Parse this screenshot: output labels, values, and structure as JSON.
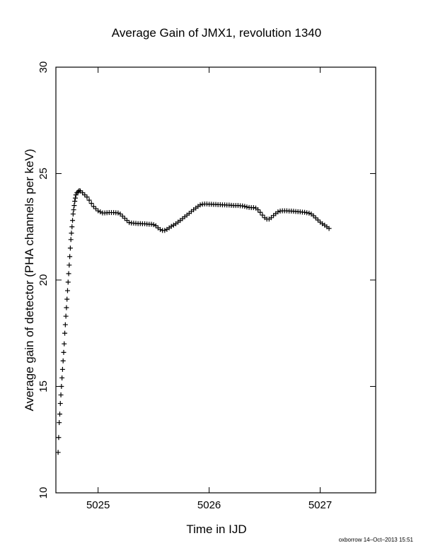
{
  "chart_data": {
    "type": "scatter",
    "title": "Average Gain of JMX1, revolution 1340",
    "xlabel": "Time in IJD",
    "ylabel": "Average gain of detector (PHA channels per keV)",
    "xlim": [
      5024.62,
      5027.5
    ],
    "ylim": [
      10,
      30
    ],
    "xticks": [
      5025,
      5026,
      5027
    ],
    "yticks": [
      10,
      15,
      20,
      25,
      30
    ],
    "xtick_labels": [
      "5025",
      "5026",
      "5027"
    ],
    "ytick_labels": [
      "10",
      "15",
      "20",
      "25",
      "30"
    ],
    "marker": "plus",
    "grid": false,
    "legend": "none",
    "points": [
      [
        5024.64,
        11.9
      ],
      [
        5024.645,
        12.6
      ],
      [
        5024.65,
        13.3
      ],
      [
        5024.655,
        13.7
      ],
      [
        5024.66,
        14.2
      ],
      [
        5024.665,
        14.6
      ],
      [
        5024.67,
        15.0
      ],
      [
        5024.675,
        15.4
      ],
      [
        5024.68,
        15.8
      ],
      [
        5024.685,
        16.2
      ],
      [
        5024.69,
        16.6
      ],
      [
        5024.695,
        17.0
      ],
      [
        5024.7,
        17.5
      ],
      [
        5024.705,
        17.9
      ],
      [
        5024.71,
        18.3
      ],
      [
        5024.715,
        18.7
      ],
      [
        5024.72,
        19.1
      ],
      [
        5024.725,
        19.5
      ],
      [
        5024.73,
        19.9
      ],
      [
        5024.735,
        20.3
      ],
      [
        5024.74,
        20.7
      ],
      [
        5024.745,
        21.1
      ],
      [
        5024.75,
        21.5
      ],
      [
        5024.755,
        21.9
      ],
      [
        5024.76,
        22.2
      ],
      [
        5024.765,
        22.5
      ],
      [
        5024.77,
        22.8
      ],
      [
        5024.775,
        23.1
      ],
      [
        5024.78,
        23.3
      ],
      [
        5024.785,
        23.5
      ],
      [
        5024.79,
        23.7
      ],
      [
        5024.795,
        23.85
      ],
      [
        5024.8,
        24.0
      ],
      [
        5024.81,
        24.1
      ],
      [
        5024.82,
        24.15
      ],
      [
        5024.83,
        24.2
      ],
      [
        5024.84,
        24.18
      ],
      [
        5024.86,
        24.1
      ],
      [
        5024.88,
        24.0
      ],
      [
        5024.9,
        23.9
      ],
      [
        5024.92,
        23.75
      ],
      [
        5024.94,
        23.6
      ],
      [
        5024.96,
        23.45
      ],
      [
        5024.98,
        23.35
      ],
      [
        5025.0,
        23.25
      ],
      [
        5025.02,
        23.2
      ],
      [
        5025.04,
        23.15
      ],
      [
        5025.06,
        23.15
      ],
      [
        5025.08,
        23.16
      ],
      [
        5025.1,
        23.17
      ],
      [
        5025.12,
        23.17
      ],
      [
        5025.14,
        23.17
      ],
      [
        5025.16,
        23.16
      ],
      [
        5025.18,
        23.15
      ],
      [
        5025.2,
        23.1
      ],
      [
        5025.22,
        23.0
      ],
      [
        5025.24,
        22.9
      ],
      [
        5025.26,
        22.8
      ],
      [
        5025.28,
        22.7
      ],
      [
        5025.3,
        22.68
      ],
      [
        5025.32,
        22.67
      ],
      [
        5025.34,
        22.66
      ],
      [
        5025.36,
        22.65
      ],
      [
        5025.38,
        22.65
      ],
      [
        5025.4,
        22.64
      ],
      [
        5025.42,
        22.64
      ],
      [
        5025.44,
        22.63
      ],
      [
        5025.46,
        22.62
      ],
      [
        5025.48,
        22.62
      ],
      [
        5025.5,
        22.6
      ],
      [
        5025.52,
        22.55
      ],
      [
        5025.54,
        22.45
      ],
      [
        5025.56,
        22.37
      ],
      [
        5025.58,
        22.33
      ],
      [
        5025.6,
        22.33
      ],
      [
        5025.62,
        22.38
      ],
      [
        5025.64,
        22.45
      ],
      [
        5025.66,
        22.52
      ],
      [
        5025.68,
        22.58
      ],
      [
        5025.7,
        22.64
      ],
      [
        5025.72,
        22.72
      ],
      [
        5025.74,
        22.8
      ],
      [
        5025.76,
        22.88
      ],
      [
        5025.78,
        22.97
      ],
      [
        5025.8,
        23.05
      ],
      [
        5025.82,
        23.13
      ],
      [
        5025.84,
        23.22
      ],
      [
        5025.86,
        23.3
      ],
      [
        5025.88,
        23.38
      ],
      [
        5025.9,
        23.46
      ],
      [
        5025.92,
        23.53
      ],
      [
        5025.94,
        23.56
      ],
      [
        5025.96,
        23.57
      ],
      [
        5025.98,
        23.57
      ],
      [
        5026.0,
        23.56
      ],
      [
        5026.02,
        23.56
      ],
      [
        5026.04,
        23.55
      ],
      [
        5026.06,
        23.55
      ],
      [
        5026.08,
        23.54
      ],
      [
        5026.1,
        23.54
      ],
      [
        5026.12,
        23.53
      ],
      [
        5026.14,
        23.53
      ],
      [
        5026.16,
        23.52
      ],
      [
        5026.18,
        23.52
      ],
      [
        5026.2,
        23.51
      ],
      [
        5026.22,
        23.5
      ],
      [
        5026.24,
        23.5
      ],
      [
        5026.26,
        23.5
      ],
      [
        5026.28,
        23.49
      ],
      [
        5026.3,
        23.48
      ],
      [
        5026.32,
        23.46
      ],
      [
        5026.34,
        23.43
      ],
      [
        5026.36,
        23.41
      ],
      [
        5026.38,
        23.4
      ],
      [
        5026.4,
        23.4
      ],
      [
        5026.42,
        23.38
      ],
      [
        5026.44,
        23.3
      ],
      [
        5026.46,
        23.18
      ],
      [
        5026.48,
        23.05
      ],
      [
        5026.5,
        22.93
      ],
      [
        5026.52,
        22.86
      ],
      [
        5026.54,
        22.86
      ],
      [
        5026.56,
        22.93
      ],
      [
        5026.58,
        23.03
      ],
      [
        5026.6,
        23.12
      ],
      [
        5026.62,
        23.2
      ],
      [
        5026.64,
        23.24
      ],
      [
        5026.66,
        23.25
      ],
      [
        5026.68,
        23.25
      ],
      [
        5026.7,
        23.25
      ],
      [
        5026.72,
        23.24
      ],
      [
        5026.74,
        23.24
      ],
      [
        5026.76,
        23.23
      ],
      [
        5026.78,
        23.22
      ],
      [
        5026.8,
        23.21
      ],
      [
        5026.82,
        23.2
      ],
      [
        5026.84,
        23.19
      ],
      [
        5026.86,
        23.18
      ],
      [
        5026.88,
        23.16
      ],
      [
        5026.9,
        23.14
      ],
      [
        5026.92,
        23.1
      ],
      [
        5026.94,
        23.02
      ],
      [
        5026.96,
        22.92
      ],
      [
        5026.98,
        22.82
      ],
      [
        5027.0,
        22.72
      ],
      [
        5027.02,
        22.64
      ],
      [
        5027.04,
        22.58
      ],
      [
        5027.06,
        22.5
      ],
      [
        5027.08,
        22.42
      ]
    ]
  },
  "footer": {
    "credit": "oxborrow 14–Oct–2013 15:51"
  }
}
